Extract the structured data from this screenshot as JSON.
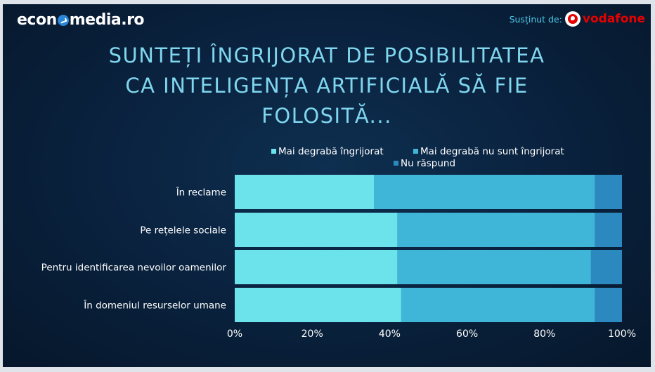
{
  "brand": {
    "logo_text_left": "econ",
    "logo_text_right": "media.ro"
  },
  "sponsor": {
    "label": "Susținut de:",
    "name": "vodafone",
    "color": "#e60000"
  },
  "title_lines": [
    "SUNTEȚI ÎNGRIJORAT DE POSIBILITATEA",
    "CA INTELIGENȚA ARTIFICIALĂ SĂ FIE",
    "FOLOSITĂ..."
  ],
  "chart_data": {
    "type": "bar",
    "orientation": "horizontal",
    "stacked": "percent",
    "categories": [
      "În reclame",
      "Pe rețelele sociale",
      "Pentru identificarea nevoilor oamenilor",
      "În domeniul resurselor umane"
    ],
    "series": [
      {
        "name": "Mai degrabă îngrijorat",
        "values": [
          36,
          42,
          42,
          43
        ],
        "color": "#6ce3ea"
      },
      {
        "name": "Mai degrabă nu sunt îngrijorat",
        "values": [
          57,
          51,
          50,
          50
        ],
        "color": "#3fb6d8"
      },
      {
        "name": "Nu răspund",
        "values": [
          7,
          7,
          8,
          7
        ],
        "color": "#2c89c0"
      }
    ],
    "xlim": [
      0,
      100
    ],
    "x_ticks": [
      "0%",
      "20%",
      "40%",
      "60%",
      "80%",
      "100%"
    ],
    "legend_position": "top",
    "grid": false
  }
}
